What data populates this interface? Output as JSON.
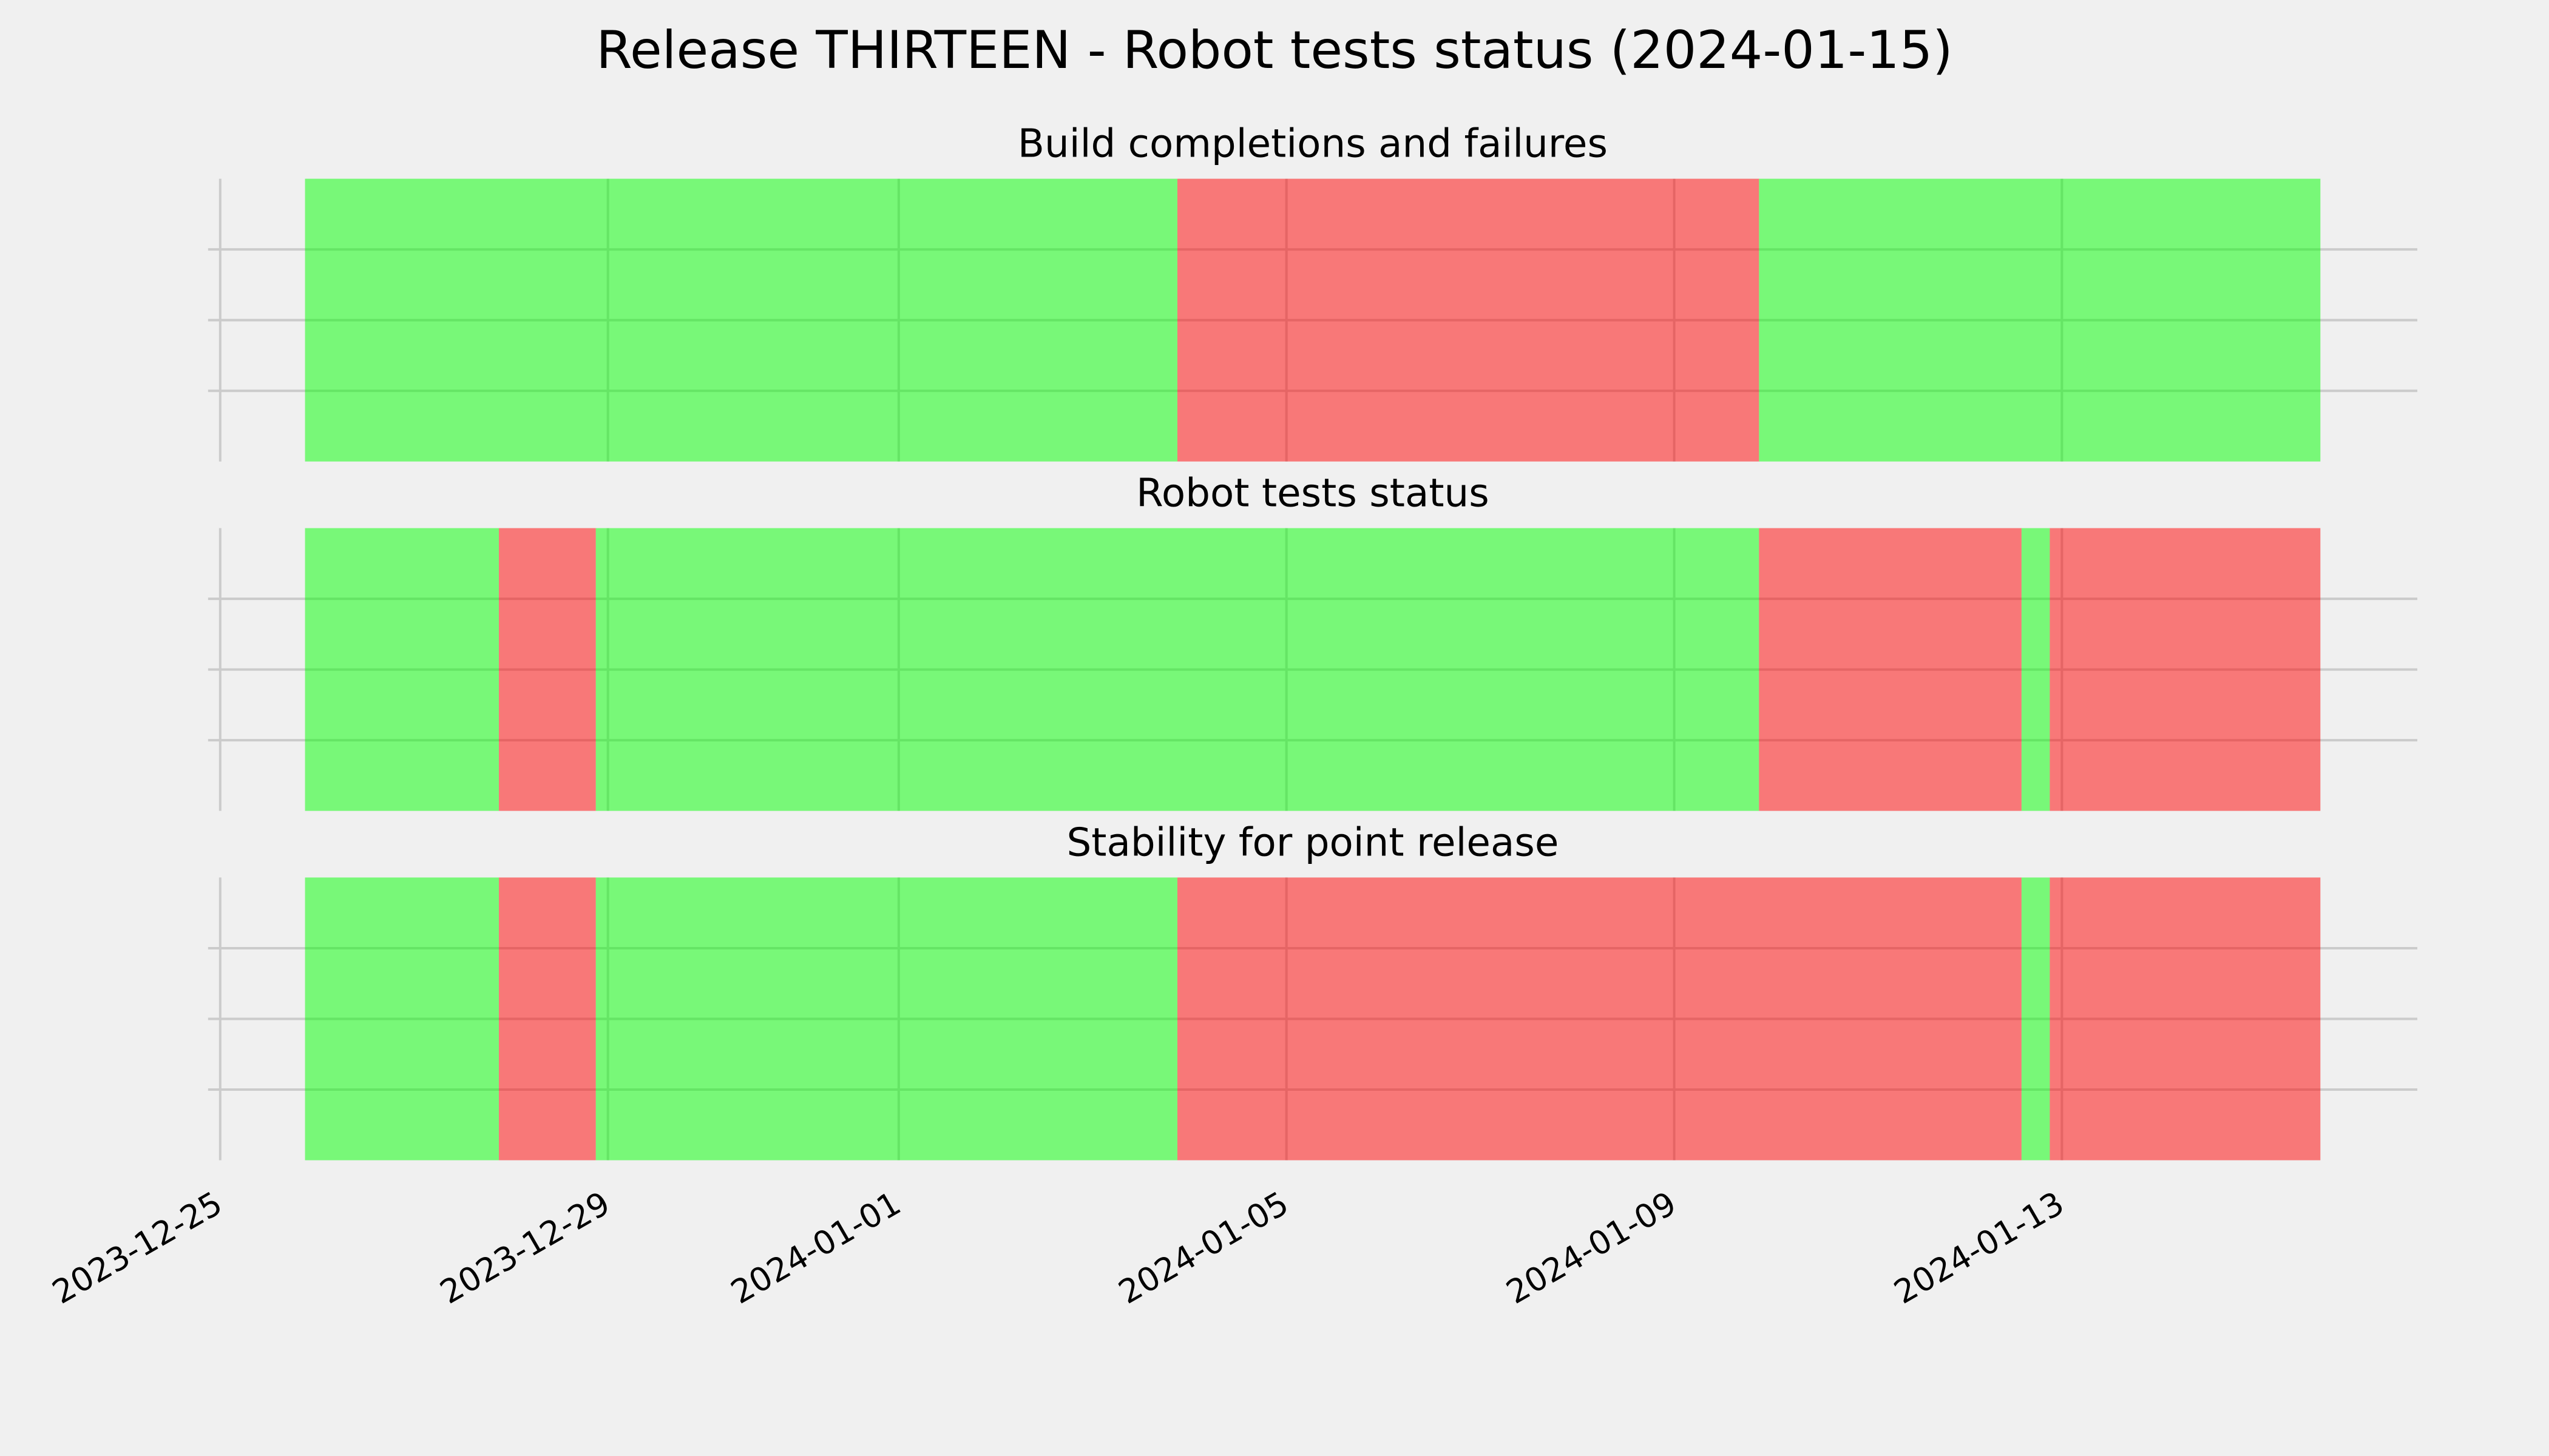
{
  "title": "Release THIRTEEN - Robot tests status (2024-01-15)",
  "chart_data": [
    {
      "type": "timeline",
      "title": "Build completions and failures",
      "starts": [
        "2023-12-25 21:00",
        "2024-01-03 21:00",
        "2024-01-09 21:00"
      ],
      "ends": [
        "2024-01-03 21:00",
        "2024-01-09 21:00",
        "2024-01-15 16:00"
      ],
      "colors": [
        "#00ff00",
        "#ff0000",
        "#00ff00"
      ],
      "xlim": [
        "2023-12-24 21:00",
        "2024-01-16 16:00"
      ],
      "xticks": [
        "2023-12-25",
        "2023-12-29",
        "2024-01-01",
        "2024-01-05",
        "2024-01-09",
        "2024-01-13"
      ],
      "xtick_labels": false,
      "ylim": [
        0,
        1
      ],
      "yticks": [
        0.25,
        0.5,
        0.75
      ],
      "ytick_labels": false,
      "grid": true
    },
    {
      "type": "timeline",
      "title": "Robot tests status",
      "starts": [
        "2023-12-25 21:00",
        "2023-12-27 21:00",
        "2023-12-28 21:00",
        "2024-01-09 21:00",
        "2024-01-12 14:00",
        "2024-01-12 21:00"
      ],
      "ends": [
        "2023-12-27 21:00",
        "2023-12-28 21:00",
        "2024-01-09 21:00",
        "2024-01-12 14:00",
        "2024-01-12 21:00",
        "2024-01-15 16:00"
      ],
      "colors": [
        "#00ff00",
        "#ff0000",
        "#00ff00",
        "#ff0000",
        "#00ff00",
        "#ff0000"
      ],
      "xlim": [
        "2023-12-24 21:00",
        "2024-01-16 16:00"
      ],
      "xticks": [
        "2023-12-25",
        "2023-12-29",
        "2024-01-01",
        "2024-01-05",
        "2024-01-09",
        "2024-01-13"
      ],
      "xtick_labels": false,
      "ylim": [
        0,
        1
      ],
      "yticks": [
        0.25,
        0.5,
        0.75
      ],
      "ytick_labels": false,
      "grid": true
    },
    {
      "type": "timeline",
      "title": "Stability for point release",
      "starts": [
        "2023-12-25 21:00",
        "2023-12-27 21:00",
        "2023-12-28 21:00",
        "2024-01-03 21:00",
        "2024-01-12 14:00",
        "2024-01-12 21:00"
      ],
      "ends": [
        "2023-12-27 21:00",
        "2023-12-28 21:00",
        "2024-01-03 21:00",
        "2024-01-12 14:00",
        "2024-01-12 21:00",
        "2024-01-15 16:00"
      ],
      "colors": [
        "#00ff00",
        "#ff0000",
        "#00ff00",
        "#ff0000",
        "#00ff00",
        "#ff0000"
      ],
      "xlim": [
        "2023-12-24 21:00",
        "2024-01-16 16:00"
      ],
      "xticks": [
        "2023-12-25",
        "2023-12-29",
        "2024-01-01",
        "2024-01-05",
        "2024-01-09",
        "2024-01-13"
      ],
      "xtick_labels": true,
      "ylim": [
        0,
        1
      ],
      "yticks": [
        0.25,
        0.5,
        0.75
      ],
      "ytick_labels": false,
      "grid": true
    }
  ]
}
